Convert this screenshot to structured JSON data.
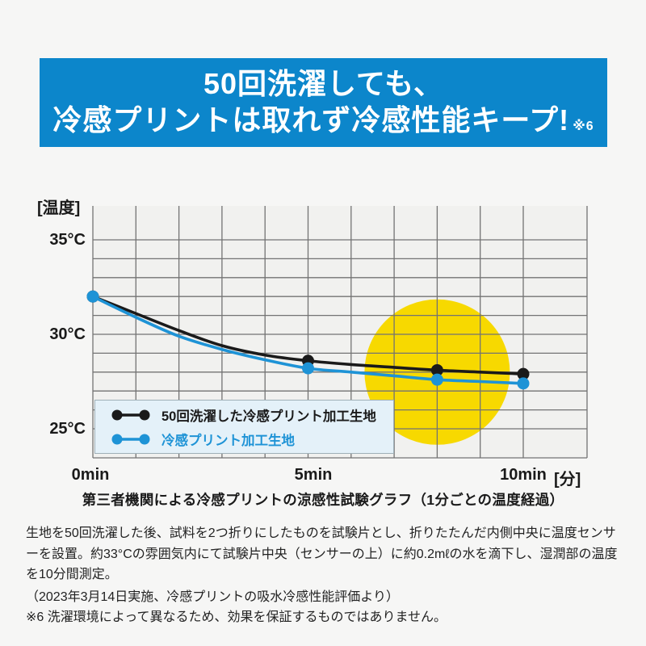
{
  "theme": {
    "banner_blue": "#0c86cb",
    "plot_bg": "#f1f1ef",
    "grid_gray": "#737373"
  },
  "banner": {
    "line1": "50回洗濯しても、",
    "line2": "冷感プリントは取れず冷感性能キープ!",
    "footnote_ref": "※6"
  },
  "chart_data": {
    "type": "line",
    "y_axis_title": "[温度]",
    "x_unit_label": "[分]",
    "y_ticks": [
      {
        "c": 35,
        "label": "35°C"
      },
      {
        "c": 30,
        "label": "30°C"
      },
      {
        "c": 25,
        "label": "25°C"
      }
    ],
    "x_ticks": [
      {
        "min": 0,
        "label": "0min"
      },
      {
        "min": 5,
        "label": "5min"
      },
      {
        "min": 10,
        "label": "10min"
      }
    ],
    "x": [
      0,
      1,
      2,
      3,
      4,
      5,
      6,
      7,
      8,
      9,
      10
    ],
    "xlabel_unit": "min",
    "ylabel_unit": "°C",
    "ylim_gridlines": [
      25,
      35
    ],
    "grid": {
      "x_step_min": 1,
      "y_step_c": 1
    },
    "series": [
      {
        "name": "50回洗濯した冷感プリント加工生地",
        "color": "#1a1a1a",
        "values": [
          32.0,
          31.1,
          30.2,
          29.4,
          28.9,
          28.6,
          28.4,
          28.25,
          28.1,
          28.0,
          27.9
        ],
        "marker_minutes": [
          0,
          5,
          8,
          10
        ]
      },
      {
        "name": "冷感プリント加工生地",
        "color": "#1e93d6",
        "values": [
          32.0,
          30.9,
          29.9,
          29.2,
          28.65,
          28.2,
          28.0,
          27.8,
          27.6,
          27.5,
          27.4
        ],
        "marker_minutes": [
          0,
          5,
          8,
          10
        ]
      }
    ],
    "highlight": {
      "shape": "circle",
      "center_min": 8,
      "center_c": 28.0,
      "radius_px": 90,
      "color": "#f7d900"
    },
    "legend_position": "bottom-left-inside"
  },
  "caption": "第三者機関による冷感プリントの涼感性試験グラフ（1分ごとの温度経過）",
  "description": "生地を50回洗濯した後、試料を2つ折りにしたものを試験片とし、折りたたんだ内側中央に温度センサーを設置。約33°Cの雰囲気内にて試験片中央（センサーの上）に約0.2mℓの水を滴下し、湿潤部の温度を10分間測定。",
  "source_note": "（2023年3月14日実施、冷感プリントの吸水冷感性能評価より）",
  "footnote": "※6 洗濯環境によって異なるため、効果を保証するものではありません。"
}
